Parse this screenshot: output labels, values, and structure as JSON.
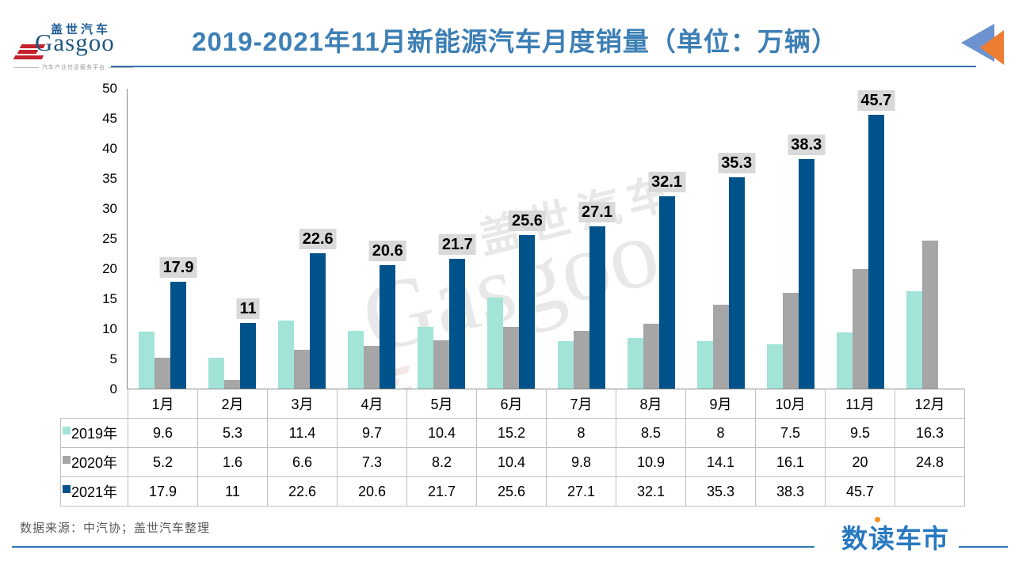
{
  "header": {
    "logo": {
      "brand_cn": "盖世汽车",
      "brand_en": "Gasgoo",
      "tagline": "汽车产业信息服务平台"
    },
    "title": "2019-2021年11月新能源汽车月度销量（单位：万辆）"
  },
  "watermark": {
    "brand_cn": "盖世汽车",
    "brand_en": "Gasgoo"
  },
  "chart_data": {
    "type": "bar",
    "title": "2019-2021年11月新能源汽车月度销量（单位：万辆）",
    "unit": "万辆",
    "categories": [
      "1月",
      "2月",
      "3月",
      "4月",
      "5月",
      "6月",
      "7月",
      "8月",
      "9月",
      "10月",
      "11月",
      "12月"
    ],
    "y_ticks": [
      "0",
      "5",
      "10",
      "15",
      "20",
      "25",
      "30",
      "35",
      "40",
      "45",
      "50"
    ],
    "ylim": [
      0,
      50
    ],
    "grid": false,
    "legend_position": "table-row-headers",
    "series": [
      {
        "name": "2019年",
        "color": "#A3E4D9",
        "values": [
          9.6,
          5.3,
          11.4,
          9.7,
          10.4,
          15.2,
          8,
          8.5,
          8,
          7.5,
          9.5,
          16.3
        ],
        "display": [
          "9.6",
          "5.3",
          "11.4",
          "9.7",
          "10.4",
          "15.2",
          "8",
          "8.5",
          "8",
          "7.5",
          "9.5",
          "16.3"
        ],
        "data_labels": false
      },
      {
        "name": "2020年",
        "color": "#A6A6A6",
        "values": [
          5.2,
          1.6,
          6.6,
          7.3,
          8.2,
          10.4,
          9.8,
          10.9,
          14.1,
          16.1,
          20,
          24.8
        ],
        "display": [
          "5.2",
          "1.6",
          "6.6",
          "7.3",
          "8.2",
          "10.4",
          "9.8",
          "10.9",
          "14.1",
          "16.1",
          "20",
          "24.8"
        ],
        "data_labels": false
      },
      {
        "name": "2021年",
        "color": "#00528A",
        "values": [
          17.9,
          11,
          22.6,
          20.6,
          21.7,
          25.6,
          27.1,
          32.1,
          35.3,
          38.3,
          45.7,
          null
        ],
        "display": [
          "17.9",
          "11",
          "22.6",
          "20.6",
          "21.7",
          "25.6",
          "27.1",
          "32.1",
          "35.3",
          "38.3",
          "45.7",
          ""
        ],
        "data_labels": true
      }
    ]
  },
  "footer": {
    "source": "数据来源：中汽协；盖世汽车整理",
    "brand": "数读车市"
  },
  "colors": {
    "title_blue": "#3D7FB5",
    "rule_blue": "#2E75B6",
    "series_2019": "#A3E4D9",
    "series_2020": "#A6A6A6",
    "series_2021": "#00528A",
    "label_bg": "#D9D9D9",
    "logo_red": "#C3222C",
    "logo_navy": "#1F567F",
    "brand_blue": "#2979C1",
    "brand_dot_orange": "#F5921E"
  }
}
